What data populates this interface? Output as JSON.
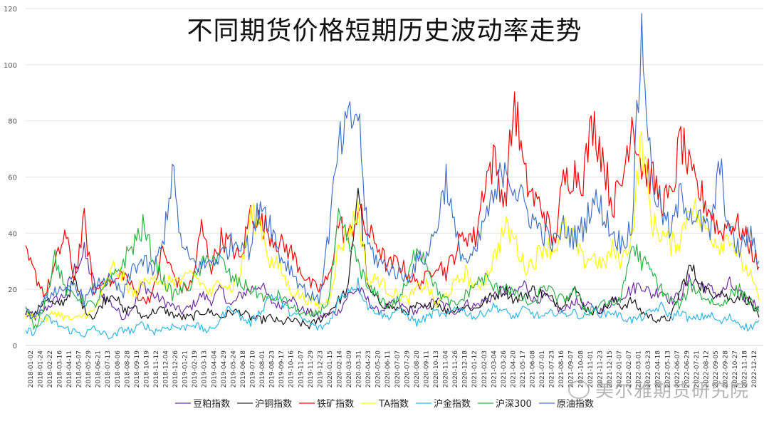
{
  "title": "不同期货价格短期历史波动率走势",
  "watermark": {
    "text": "美尔雅期货研究院",
    "icon": "wechat-icon"
  },
  "chart_data": {
    "type": "line",
    "title": "不同期货价格短期历史波动率走势",
    "xlabel": "",
    "ylabel": "",
    "ylim": [
      0,
      120
    ],
    "yticks": [
      0,
      20,
      40,
      60,
      80,
      100,
      120
    ],
    "grid": true,
    "legend_position": "bottom",
    "x_range": [
      "2018-01-02",
      "2022-12-30"
    ],
    "xtick_labels": [
      "2018-01-02",
      "2018-01-24",
      "2018-02-22",
      "2018-03-16",
      "2018-04-11",
      "2018-05-07",
      "2018-05-29",
      "2018-06-21",
      "2018-07-13",
      "2018-08-06",
      "2018-08-28",
      "2018-09-19",
      "2018-10-19",
      "2018-11-12",
      "2018-12-04",
      "2018-12-26",
      "2019-01-21",
      "2019-02-19",
      "2019-03-13",
      "2019-04-04",
      "2019-04-29",
      "2019-05-24",
      "2019-06-18",
      "2019-07-10",
      "2019-08-01",
      "2019-08-23",
      "2019-09-17",
      "2019-10-16",
      "2019-11-07",
      "2019-11-29",
      "2019-12-23",
      "2020-01-15",
      "2020-02-14",
      "2020-03-09",
      "2020-03-31",
      "2020-04-23",
      "2020-05-20",
      "2020-06-11",
      "2020-07-07",
      "2020-07-29",
      "2020-08-20",
      "2020-09-11",
      "2020-10-13",
      "2020-11-04",
      "2020-11-26",
      "2020-12-18",
      "2021-01-12",
      "2021-02-03",
      "2021-03-04",
      "2021-03-26",
      "2021-04-20",
      "2021-05-17",
      "2021-06-08",
      "2021-07-01",
      "2021-07-23",
      "2021-08-16",
      "2021-09-07",
      "2021-10-08",
      "2021-11-01",
      "2021-11-23",
      "2021-12-15",
      "2022-01-07",
      "2022-02-07",
      "2022-03-01",
      "2022-03-23",
      "2022-04-18",
      "2022-05-13",
      "2022-06-07",
      "2022-06-29",
      "2022-07-21",
      "2022-08-12",
      "2022-09-05",
      "2022-09-28",
      "2022-10-27",
      "2022-11-18",
      "2022-12-12"
    ],
    "series_note": "Approximate values sampled at each x tick (one value per tick), read from the chart",
    "series": [
      {
        "name": "豆粕指数",
        "color": "#7030a0",
        "values": [
          11,
          10,
          13,
          16,
          18,
          27,
          33,
          22,
          18,
          14,
          10,
          14,
          22,
          18,
          16,
          14,
          12,
          14,
          18,
          16,
          20,
          14,
          18,
          20,
          22,
          16,
          14,
          18,
          13,
          12,
          10,
          11,
          12,
          18,
          20,
          16,
          12,
          14,
          15,
          13,
          12,
          14,
          16,
          14,
          12,
          15,
          14,
          16,
          18,
          20,
          18,
          22,
          16,
          18,
          14,
          12,
          16,
          14,
          14,
          12,
          16,
          18,
          20,
          22,
          18,
          20,
          16,
          18,
          24,
          22,
          20,
          18,
          22,
          18,
          16,
          14
        ]
      },
      {
        "name": "沪铜指数",
        "color": "#1a1a1a",
        "values": [
          12,
          11,
          17,
          14,
          16,
          23,
          13,
          10,
          16,
          19,
          12,
          14,
          10,
          12,
          13,
          11,
          10,
          10,
          12,
          12,
          10,
          12,
          12,
          10,
          9,
          10,
          8,
          9,
          8,
          7,
          9,
          12,
          16,
          20,
          58,
          20,
          16,
          14,
          13,
          12,
          14,
          13,
          16,
          12,
          13,
          14,
          13,
          16,
          18,
          20,
          16,
          18,
          20,
          18,
          16,
          14,
          22,
          14,
          12,
          13,
          16,
          14,
          16,
          12,
          10,
          9,
          10,
          20,
          28,
          22,
          18,
          20,
          16,
          18,
          16,
          10
        ]
      },
      {
        "name": "铁矿指数",
        "color": "#ff0000",
        "values": [
          32,
          25,
          18,
          28,
          40,
          24,
          44,
          18,
          24,
          22,
          26,
          20,
          16,
          18,
          34,
          26,
          20,
          22,
          42,
          28,
          38,
          36,
          30,
          48,
          44,
          40,
          36,
          34,
          28,
          22,
          20,
          24,
          44,
          38,
          48,
          40,
          36,
          28,
          30,
          26,
          22,
          24,
          30,
          26,
          34,
          40,
          38,
          60,
          66,
          50,
          88,
          60,
          52,
          48,
          36,
          58,
          62,
          60,
          80,
          68,
          50,
          58,
          82,
          64,
          60,
          52,
          52,
          74,
          60,
          54,
          48,
          40,
          44,
          42,
          36,
          28
        ]
      },
      {
        "name": "TA指数",
        "color": "#ffff00",
        "values": [
          10,
          11,
          9,
          12,
          10,
          9,
          11,
          12,
          20,
          28,
          24,
          18,
          22,
          26,
          20,
          24,
          22,
          26,
          22,
          18,
          24,
          20,
          26,
          46,
          44,
          30,
          28,
          20,
          18,
          16,
          14,
          16,
          34,
          40,
          48,
          22,
          24,
          20,
          18,
          16,
          20,
          22,
          14,
          18,
          22,
          26,
          20,
          24,
          32,
          42,
          38,
          28,
          30,
          36,
          34,
          42,
          38,
          30,
          32,
          28,
          34,
          30,
          40,
          74,
          44,
          40,
          36,
          38,
          52,
          44,
          40,
          36,
          40,
          30,
          26,
          16
        ]
      },
      {
        "name": "沪金指数",
        "color": "#33b5e5",
        "values": [
          5,
          5,
          10,
          8,
          6,
          5,
          4,
          6,
          4,
          3,
          6,
          5,
          8,
          5,
          6,
          7,
          6,
          8,
          6,
          5,
          10,
          14,
          10,
          8,
          12,
          18,
          16,
          12,
          10,
          8,
          6,
          8,
          16,
          20,
          22,
          14,
          12,
          10,
          13,
          11,
          8,
          10,
          12,
          10,
          14,
          12,
          10,
          12,
          14,
          12,
          10,
          13,
          11,
          10,
          12,
          11,
          12,
          10,
          13,
          11,
          12,
          10,
          9,
          10,
          12,
          14,
          10,
          12,
          9,
          10,
          11,
          8,
          10,
          8,
          6,
          9
        ]
      },
      {
        "name": "沪深300",
        "color": "#2db34a",
        "values": [
          13,
          6,
          16,
          32,
          20,
          18,
          16,
          14,
          20,
          24,
          30,
          36,
          42,
          32,
          24,
          18,
          20,
          22,
          28,
          32,
          30,
          24,
          22,
          20,
          18,
          16,
          18,
          14,
          12,
          10,
          12,
          16,
          44,
          36,
          30,
          20,
          18,
          14,
          16,
          22,
          36,
          30,
          20,
          16,
          14,
          18,
          22,
          24,
          20,
          22,
          18,
          16,
          14,
          22,
          18,
          16,
          20,
          14,
          12,
          16,
          14,
          18,
          36,
          30,
          26,
          20,
          16,
          14,
          22,
          18,
          16,
          14,
          18,
          20,
          16,
          12
        ]
      },
      {
        "name": "原油指数",
        "color": "#4472c4",
        "values": [
          12,
          10,
          16,
          20,
          18,
          22,
          16,
          20,
          24,
          22,
          18,
          28,
          30,
          26,
          36,
          62,
          34,
          30,
          28,
          30,
          32,
          36,
          38,
          34,
          52,
          44,
          32,
          28,
          22,
          18,
          16,
          40,
          70,
          78,
          84,
          36,
          30,
          28,
          26,
          24,
          30,
          32,
          42,
          60,
          38,
          30,
          32,
          46,
          52,
          66,
          56,
          50,
          44,
          40,
          36,
          42,
          38,
          42,
          52,
          48,
          40,
          36,
          44,
          112,
          60,
          48,
          40,
          54,
          48,
          44,
          40,
          64,
          40,
          34,
          40,
          30
        ]
      }
    ]
  },
  "legend": {
    "items": [
      {
        "label": "豆粕指数",
        "color": "#a57cc6"
      },
      {
        "label": "沪铜指数",
        "color": "#7f7f7f"
      },
      {
        "label": "铁矿指数",
        "color": "#ff6666"
      },
      {
        "label": "TA指数",
        "color": "#ffff66"
      },
      {
        "label": "沪金指数",
        "color": "#7fd3f2"
      },
      {
        "label": "沪深300",
        "color": "#7fd18f"
      },
      {
        "label": "原油指数",
        "color": "#8eaadb"
      }
    ]
  }
}
